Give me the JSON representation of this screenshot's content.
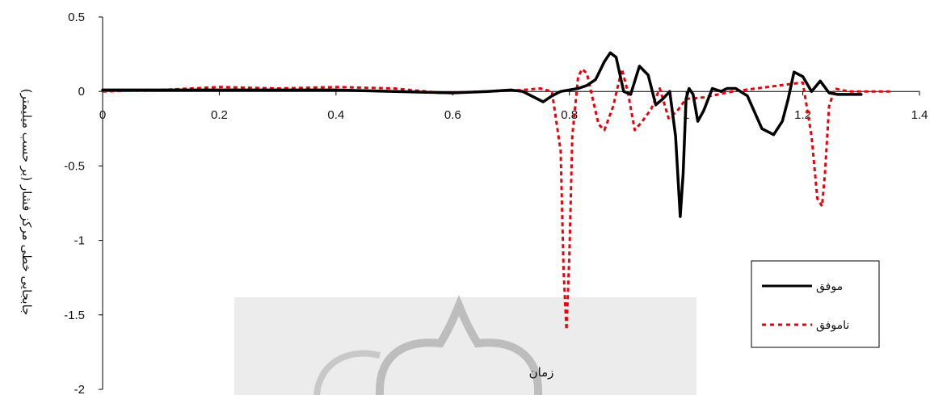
{
  "chart_data": {
    "type": "line",
    "title": "",
    "xlabel": "زمان",
    "ylabel": "جابجایی خطی مرکز فشار (بر حسب میلیمتر)",
    "xlim": [
      0,
      1.4
    ],
    "ylim": [
      -2,
      0.5
    ],
    "xticks": [
      "0",
      "0.2",
      "0.4",
      "0.6",
      "0.8",
      "1",
      "1.2",
      "1.4"
    ],
    "yticks": [
      "0.5",
      "0",
      "-0.5",
      "-1",
      "-1.5",
      "-2"
    ],
    "grid": false,
    "legend_position": "right",
    "series": [
      {
        "name": "موفق",
        "color": "#000000",
        "style": "solid",
        "x": [
          0,
          0.1,
          0.2,
          0.3,
          0.4,
          0.5,
          0.6,
          0.66,
          0.7,
          0.72,
          0.74,
          0.755,
          0.77,
          0.785,
          0.8,
          0.815,
          0.83,
          0.845,
          0.86,
          0.87,
          0.88,
          0.893,
          0.905,
          0.92,
          0.935,
          0.948,
          0.96,
          0.972,
          0.982,
          0.99,
          0.995,
          1.0,
          1.005,
          1.012,
          1.02,
          1.03,
          1.045,
          1.06,
          1.07,
          1.085,
          1.105,
          1.13,
          1.15,
          1.165,
          1.175,
          1.185,
          1.2,
          1.215,
          1.23,
          1.245,
          1.26,
          1.28,
          1.3
        ],
        "values": [
          0.01,
          0.01,
          0.01,
          0.01,
          0.01,
          0.0,
          -0.01,
          0.0,
          0.01,
          0.0,
          -0.04,
          -0.07,
          -0.03,
          0.0,
          0.01,
          0.02,
          0.04,
          0.08,
          0.2,
          0.26,
          0.23,
          0.0,
          -0.02,
          0.17,
          0.11,
          -0.09,
          -0.05,
          0.0,
          -0.3,
          -0.84,
          -0.55,
          -0.05,
          0.02,
          -0.02,
          -0.2,
          -0.13,
          0.02,
          0.0,
          0.02,
          0.02,
          -0.03,
          -0.25,
          -0.29,
          -0.2,
          -0.05,
          0.13,
          0.1,
          0.0,
          0.07,
          -0.01,
          -0.02,
          -0.02,
          -0.02
        ]
      },
      {
        "name": "ناموفق",
        "color": "#e8000b",
        "style": "dotted",
        "x": [
          0,
          0.1,
          0.2,
          0.3,
          0.4,
          0.5,
          0.58,
          0.66,
          0.72,
          0.75,
          0.77,
          0.785,
          0.79,
          0.795,
          0.8,
          0.805,
          0.815,
          0.822,
          0.83,
          0.84,
          0.85,
          0.86,
          0.875,
          0.89,
          0.9,
          0.912,
          0.925,
          0.94,
          0.955,
          0.97,
          0.985,
          1.0,
          1.03,
          1.08,
          1.12,
          1.16,
          1.2,
          1.215,
          1.225,
          1.233,
          1.238,
          1.245,
          1.255,
          1.265,
          1.28,
          1.31,
          1.35
        ],
        "values": [
          0.0,
          0.01,
          0.03,
          0.02,
          0.03,
          0.02,
          -0.01,
          0.0,
          0.01,
          0.02,
          0.0,
          -0.4,
          -1.2,
          -1.6,
          -1.1,
          -0.3,
          0.1,
          0.15,
          0.12,
          -0.05,
          -0.22,
          -0.26,
          -0.1,
          0.15,
          0.0,
          -0.26,
          -0.2,
          -0.12,
          0.02,
          -0.18,
          -0.13,
          -0.05,
          -0.04,
          0.0,
          0.02,
          0.04,
          0.06,
          -0.3,
          -0.72,
          -0.77,
          -0.55,
          -0.1,
          0.02,
          0.01,
          0.0,
          0.0,
          0.0
        ]
      }
    ]
  }
}
